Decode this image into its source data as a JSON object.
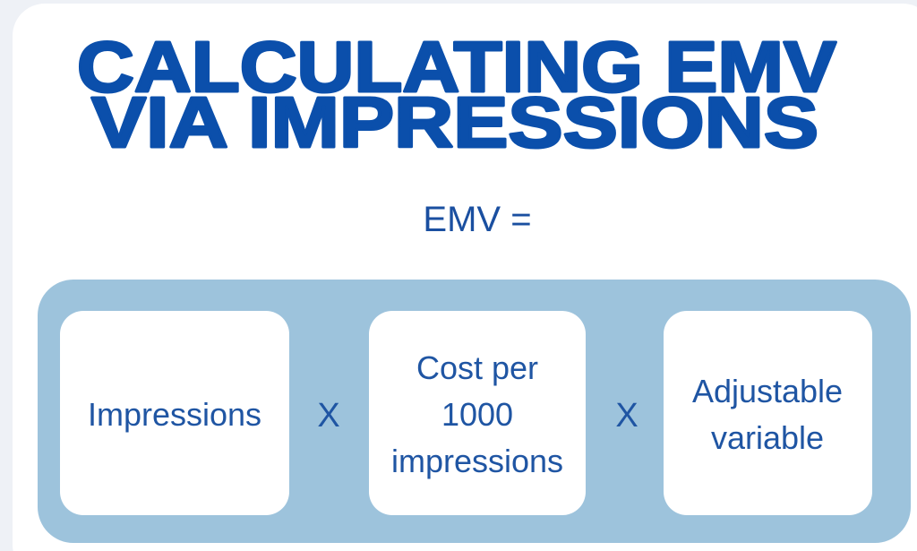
{
  "title": {
    "lines": [
      "CALCULATING EMV",
      "VIA IMPRESSIONS"
    ]
  },
  "formula": {
    "label": "EMV =",
    "terms": [
      {
        "lines": [
          "Impressions"
        ]
      },
      {
        "lines": [
          "Cost per",
          "1000",
          "impressions"
        ]
      },
      {
        "lines": [
          "Adjustable",
          "variable"
        ]
      }
    ],
    "operators": [
      "X",
      "X"
    ]
  }
}
